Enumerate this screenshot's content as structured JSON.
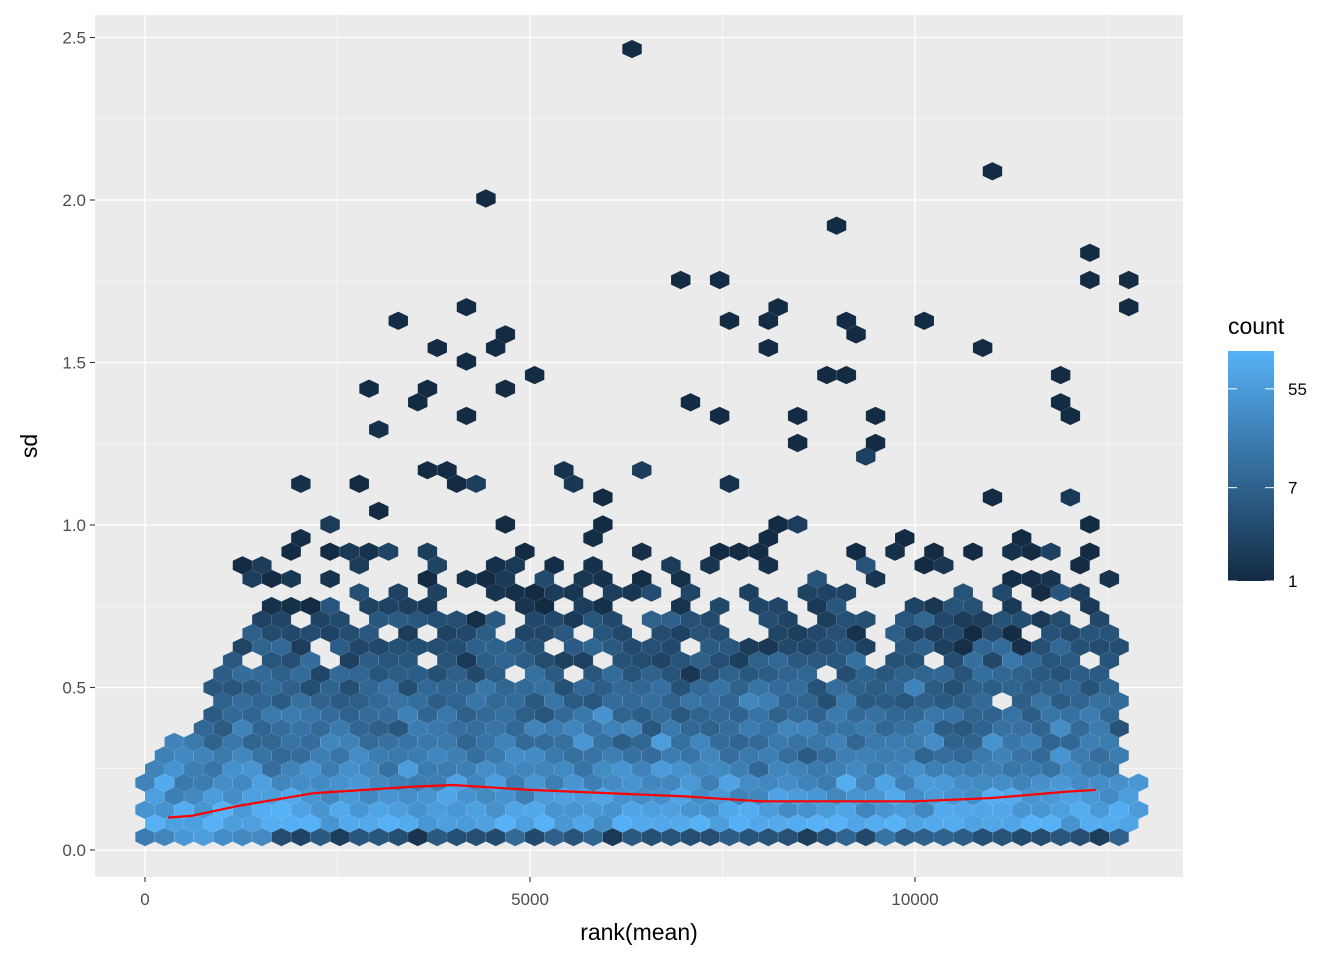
{
  "chart_data": {
    "type": "hexbin",
    "xlabel": "rank(mean)",
    "ylabel": "sd",
    "xlim": [
      -650,
      13450
    ],
    "ylim": [
      -0.08,
      2.56
    ],
    "x_ticks": [
      0,
      5000,
      10000
    ],
    "x_tick_labels": [
      "0",
      "5000",
      "10000"
    ],
    "y_ticks": [
      0.0,
      0.5,
      1.0,
      1.5,
      2.0,
      2.5
    ],
    "y_tick_labels": [
      "0.0",
      "0.5",
      "1.0",
      "1.5",
      "2.0",
      "2.5"
    ],
    "grid": true,
    "legend": {
      "title": "count",
      "position": "right",
      "scale": "log",
      "breaks": [
        1,
        7,
        55
      ],
      "break_labels": [
        "1",
        "7",
        "55"
      ],
      "range": [
        1,
        121
      ],
      "low_color": "#132B43",
      "high_color": "#56B1F7"
    },
    "dense_rows_columns": [
      "sd",
      "x_from",
      "x_to",
      "typical_count",
      "fill_fraction"
    ],
    "dense_rows": [
      [
        0.04,
        0,
        1500,
        35,
        1
      ],
      [
        0.04,
        1700,
        12600,
        4,
        1
      ],
      [
        0.08,
        0,
        12800,
        80,
        1
      ],
      [
        0.125,
        0,
        12800,
        60,
        1
      ],
      [
        0.17,
        0,
        12800,
        45,
        1
      ],
      [
        0.21,
        0,
        12800,
        32,
        1
      ],
      [
        0.25,
        0,
        12600,
        24,
        1
      ],
      [
        0.29,
        200,
        12600,
        18,
        1
      ],
      [
        0.33,
        500,
        12600,
        14,
        1
      ],
      [
        0.375,
        800,
        12600,
        11,
        1
      ],
      [
        0.42,
        900,
        12600,
        9,
        0.98
      ],
      [
        0.46,
        900,
        12600,
        8,
        0.97
      ],
      [
        0.5,
        1000,
        12600,
        7,
        0.96
      ],
      [
        0.54,
        1000,
        12500,
        6,
        0.93
      ],
      [
        0.58,
        800,
        12500,
        5,
        0.9
      ],
      [
        0.62,
        1200,
        12600,
        4,
        0.85
      ],
      [
        0.67,
        1400,
        12600,
        3,
        0.8
      ],
      [
        0.71,
        1500,
        12600,
        3,
        0.72
      ],
      [
        0.75,
        1700,
        12600,
        2,
        0.6
      ],
      [
        0.79,
        1800,
        12500,
        2,
        0.5
      ],
      [
        0.83,
        1200,
        12500,
        1.5,
        0.45
      ],
      [
        0.875,
        1300,
        12500,
        1.3,
        0.35
      ],
      [
        0.92,
        1200,
        12600,
        1,
        0.25
      ],
      [
        0.96,
        2000,
        12400,
        1,
        0.2
      ],
      [
        1.0,
        2000,
        12400,
        1,
        0.15
      ],
      [
        1.04,
        3000,
        12200,
        1,
        0.14
      ],
      [
        1.08,
        3000,
        12300,
        1,
        0.12
      ],
      [
        1.12,
        1900,
        12300,
        1,
        0.1
      ],
      [
        1.16,
        2300,
        12200,
        1,
        0.07
      ],
      [
        1.2,
        3700,
        12200,
        1,
        0.06
      ],
      [
        1.25,
        4000,
        12700,
        1,
        0.07
      ],
      [
        1.29,
        2900,
        11000,
        1,
        0.04
      ]
    ],
    "isolated_hexes": [
      [
        6200,
        2.45
      ],
      [
        10900,
        2.08
      ],
      [
        4500,
        2.0
      ],
      [
        8900,
        1.91
      ],
      [
        12200,
        1.83
      ],
      [
        6900,
        1.745
      ],
      [
        7400,
        1.745
      ],
      [
        12300,
        1.745
      ],
      [
        12700,
        1.745
      ],
      [
        4300,
        1.66
      ],
      [
        8200,
        1.66
      ],
      [
        12700,
        1.66
      ],
      [
        3200,
        1.62
      ],
      [
        7700,
        1.62
      ],
      [
        8000,
        1.62
      ],
      [
        9000,
        1.62
      ],
      [
        10050,
        1.62
      ],
      [
        4800,
        1.58
      ],
      [
        9150,
        1.58
      ],
      [
        3700,
        1.54
      ],
      [
        4500,
        1.54
      ],
      [
        8050,
        1.54
      ],
      [
        10800,
        1.54
      ],
      [
        4050,
        1.5
      ],
      [
        5000,
        1.45
      ],
      [
        8850,
        1.45
      ],
      [
        9050,
        1.45
      ],
      [
        12000,
        1.45
      ],
      [
        2800,
        1.41
      ],
      [
        3550,
        1.41
      ],
      [
        4800,
        1.41
      ],
      [
        3650,
        1.37
      ],
      [
        7050,
        1.37
      ],
      [
        12000,
        1.37
      ],
      [
        4300,
        1.33
      ],
      [
        7450,
        1.33
      ],
      [
        8400,
        1.33
      ],
      [
        9550,
        1.33
      ],
      [
        12100,
        1.33
      ]
    ],
    "trend_line": {
      "color": "#FF0000",
      "x": [
        300,
        600,
        1200,
        2200,
        3500,
        4000,
        5000,
        6000,
        7000,
        8000,
        9000,
        10000,
        11000,
        12000,
        12350
      ],
      "y": [
        0.1,
        0.105,
        0.135,
        0.175,
        0.195,
        0.2,
        0.185,
        0.175,
        0.165,
        0.15,
        0.15,
        0.15,
        0.16,
        0.18,
        0.185
      ]
    }
  }
}
